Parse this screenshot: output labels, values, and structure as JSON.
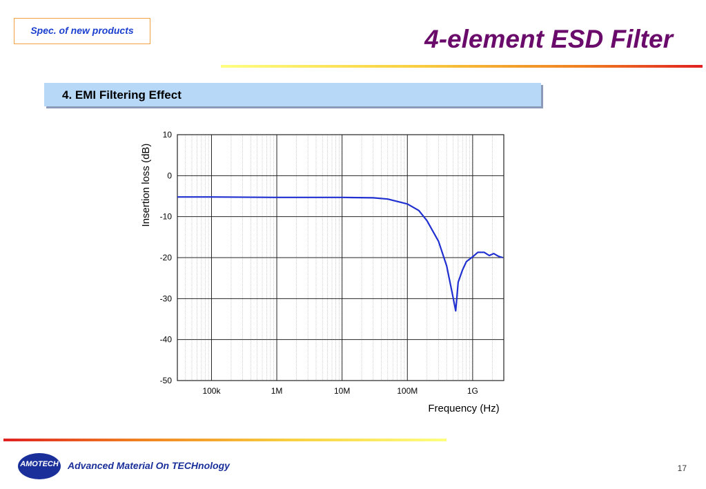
{
  "header": {
    "tag": "Spec. of new products",
    "title": "4-element ESD Filter",
    "section": "4. EMI Filtering Effect"
  },
  "footer": {
    "logo": "AMOTECH",
    "text": "Advanced Material On TECHnology",
    "page": "17"
  },
  "chart_data": {
    "type": "line",
    "x_label": "Frequency (Hz)",
    "y_label": "Insertion loss (dB)",
    "x": [
      30000,
      100000,
      1000000,
      10000000,
      30000000,
      50000000,
      100000000,
      150000000,
      200000000,
      300000000,
      400000000,
      500000000,
      550000000,
      600000000,
      700000000,
      800000000,
      1000000000,
      1200000000,
      1500000000,
      1800000000,
      2100000000,
      2500000000,
      2900000000
    ],
    "values": [
      -5.2,
      -5.2,
      -5.3,
      -5.3,
      -5.4,
      -5.7,
      -6.9,
      -8.5,
      -11,
      -16,
      -22,
      -29.6,
      -33,
      -26,
      -23,
      -21,
      -19.8,
      -18.7,
      -18.7,
      -19.5,
      -19,
      -19.7,
      -20
    ],
    "color": "#1f2fd0",
    "x_log": true,
    "grid": true,
    "xlim": [
      30000,
      3000000000
    ],
    "xticks": [
      {
        "value": 100000,
        "label": "100k"
      },
      {
        "value": 1000000,
        "label": "1M"
      },
      {
        "value": 10000000,
        "label": "10M"
      },
      {
        "value": 100000000,
        "label": "100M"
      },
      {
        "value": 1000000000,
        "label": "1G"
      }
    ],
    "ylim": [
      -50,
      10
    ],
    "yticks": [
      -50,
      -40,
      -30,
      -20,
      -10,
      0,
      10
    ]
  }
}
